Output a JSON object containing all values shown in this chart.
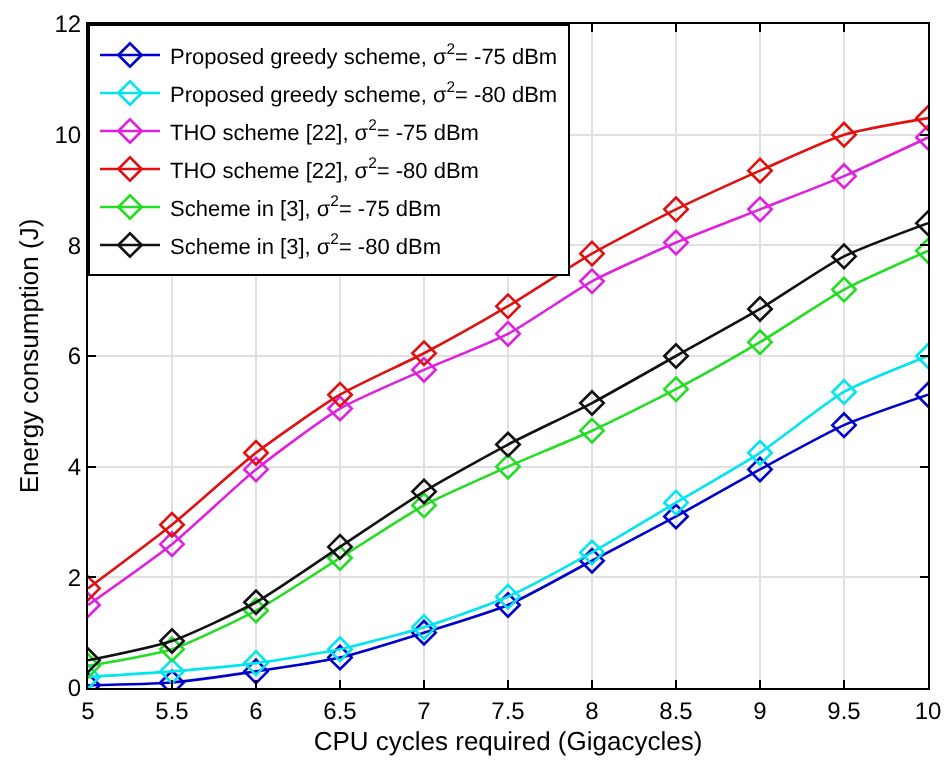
{
  "chart_data": {
    "type": "line",
    "xlabel": "CPU cycles required (Gigacycles)",
    "ylabel": "Energy consumption (J)",
    "x": [
      5,
      5.5,
      6,
      6.5,
      7,
      7.5,
      8,
      8.5,
      9,
      9.5,
      10
    ],
    "xlim": [
      5,
      10
    ],
    "xticks": [
      5,
      5.5,
      6,
      6.5,
      7,
      7.5,
      8,
      8.5,
      9,
      9.5,
      10
    ],
    "ylim": [
      0,
      12
    ],
    "yticks": [
      0,
      2,
      4,
      6,
      8,
      10,
      12
    ],
    "grid": true,
    "legend": "top left",
    "marker": "diamond",
    "line_style": "solid",
    "series": [
      {
        "name": "Proposed greedy scheme, σ$^{2}$= -75 dBm",
        "color": "#0000cc",
        "values": [
          0.05,
          0.1,
          0.3,
          0.55,
          1.0,
          1.5,
          2.3,
          3.1,
          3.95,
          4.75,
          5.3
        ]
      },
      {
        "name": "Proposed greedy scheme, σ$^{2}$= -80 dBm",
        "color": "#00e5ee",
        "values": [
          0.2,
          0.3,
          0.45,
          0.7,
          1.1,
          1.65,
          2.45,
          3.35,
          4.25,
          5.35,
          6.0
        ]
      },
      {
        "name": "THO scheme [22], σ$^{2}$= -75 dBm",
        "color": "#e020e0",
        "values": [
          1.5,
          2.6,
          3.95,
          5.05,
          5.75,
          6.4,
          7.35,
          8.05,
          8.65,
          9.25,
          9.95
        ]
      },
      {
        "name": "THO scheme [22], σ$^{2}$= -80 dBm",
        "color": "#e01010",
        "values": [
          1.8,
          2.95,
          4.25,
          5.3,
          6.05,
          6.9,
          7.85,
          8.65,
          9.35,
          10.0,
          10.3
        ]
      },
      {
        "name": "Scheme in [3], σ$^{2}$= -75 dBm",
        "color": "#22dd22",
        "values": [
          0.4,
          0.7,
          1.4,
          2.35,
          3.3,
          4.0,
          4.65,
          5.4,
          6.25,
          7.2,
          7.9
        ]
      },
      {
        "name": "Scheme in [3], σ$^{2}$= -80 dBm",
        "color": "#111111",
        "values": [
          0.5,
          0.85,
          1.55,
          2.55,
          3.55,
          4.4,
          5.15,
          6.0,
          6.85,
          7.8,
          8.4
        ]
      }
    ]
  }
}
